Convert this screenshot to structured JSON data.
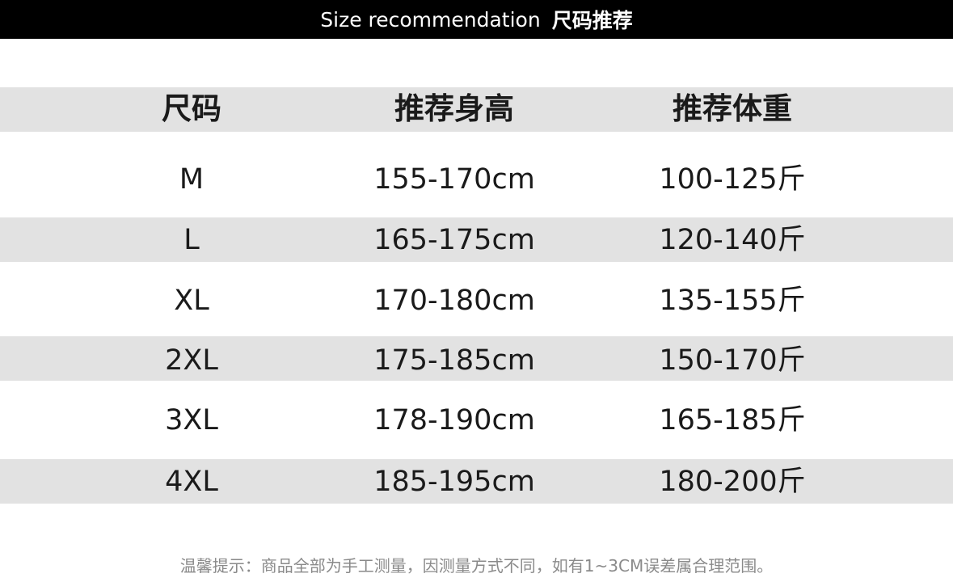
{
  "title": {
    "en": "Size recommendation",
    "cn": "尺码推荐"
  },
  "table": {
    "headers": [
      "尺码",
      "推荐身高",
      "推荐体重"
    ],
    "rows": [
      [
        "M",
        "155-170cm",
        "100-125斤"
      ],
      [
        "L",
        "165-175cm",
        "120-140斤"
      ],
      [
        "XL",
        "170-180cm",
        "135-155斤"
      ],
      [
        "2XL",
        "175-185cm",
        "150-170斤"
      ],
      [
        "3XL",
        "178-190cm",
        "165-185斤"
      ],
      [
        "4XL",
        "185-195cm",
        "180-200斤"
      ]
    ]
  },
  "note": "温馨提示：商品全部为手工测量，因测量方式不同，如有1~3CM误差属合理范围。",
  "colors": {
    "title_bar": "#000000",
    "band": "#e2e2e2",
    "note_text": "#8a8a8a"
  }
}
